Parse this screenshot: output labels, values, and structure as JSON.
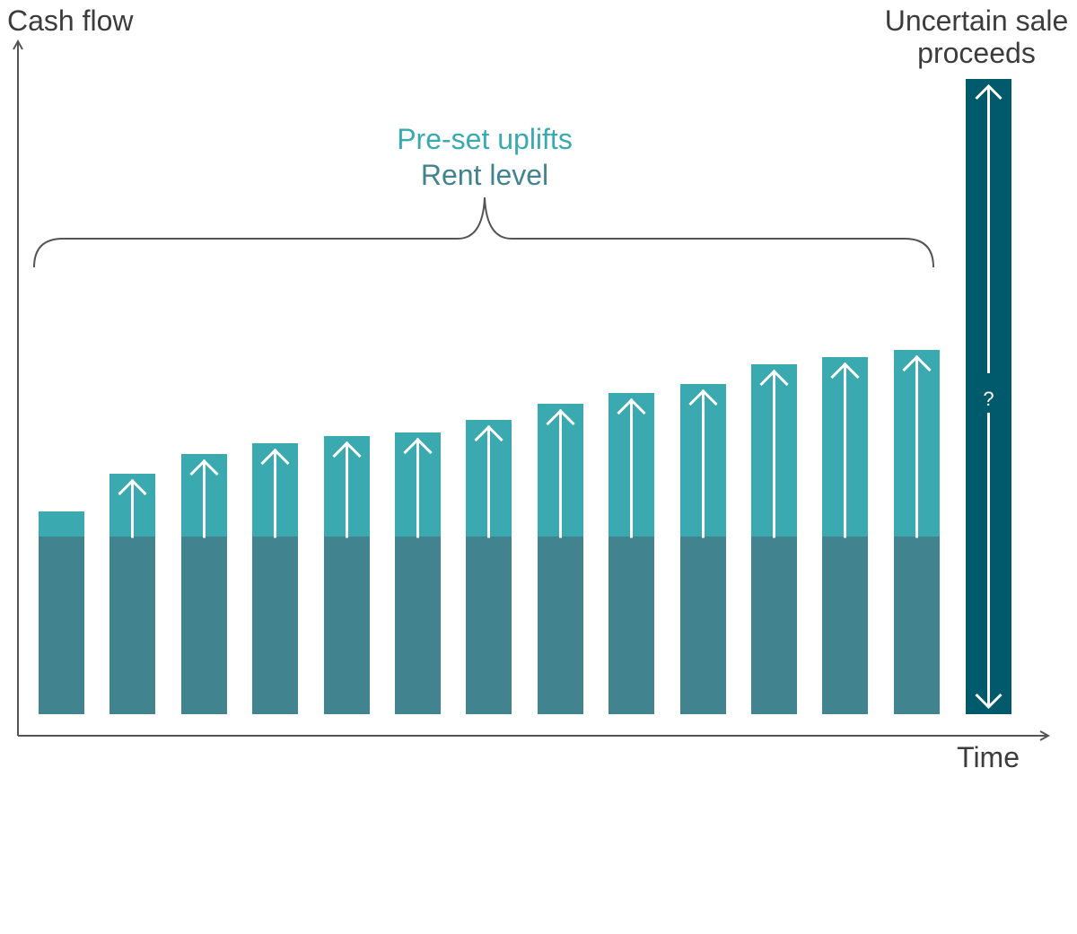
{
  "chart_data": {
    "type": "bar",
    "ylabel": "Cash flow",
    "xlabel": "Time",
    "annotation_uplifts": "Pre-set uplifts",
    "annotation_rent": "Rent level",
    "sale_label_line1": "Uncertain sale",
    "sale_label_line2": "proceeds",
    "sale_marker": "?",
    "series": [
      {
        "name": "Rent level",
        "values": [
          198,
          198,
          198,
          198,
          198,
          198,
          198,
          198,
          198,
          198,
          198,
          198,
          198
        ]
      },
      {
        "name": "Pre-set uplifts",
        "values": [
          28,
          70,
          92,
          104,
          112,
          116,
          130,
          148,
          160,
          170,
          192,
          200,
          208
        ]
      }
    ],
    "sale_bar_value": 708,
    "ylim": [
      0,
      776
    ],
    "grid": false,
    "legend": "none",
    "colors": {
      "rent": "#428390",
      "uplift": "#3aa9b0",
      "sale": "#005a6b",
      "axis": "#555555",
      "text": "#3c3c3c",
      "uplift_text": "#3aa9b0",
      "rent_text": "#428390",
      "arrow": "#ffffff"
    }
  }
}
